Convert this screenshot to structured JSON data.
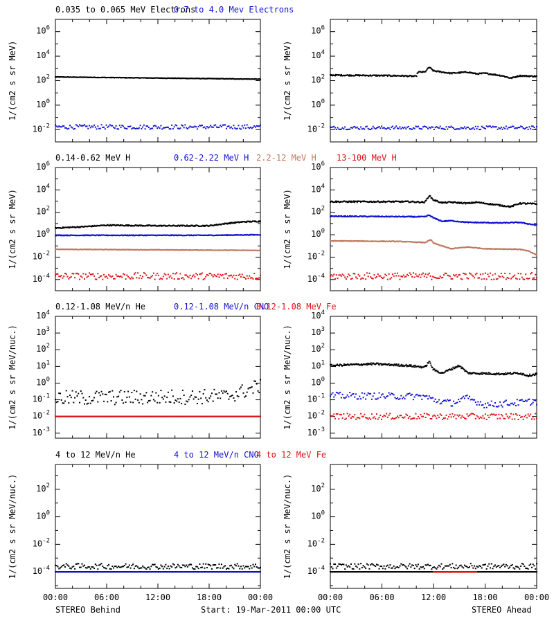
{
  "colors": {
    "black": "#000000",
    "blue": "#1010d0",
    "tan": "#c07860",
    "red": "#dd1010"
  },
  "footer": {
    "left": "STEREO Behind",
    "center": "Start: 19-Mar-2011 00:00 UTC",
    "right": "STEREO Ahead"
  },
  "x_ticks": [
    "00:00",
    "06:00",
    "12:00",
    "18:00",
    "00:00"
  ],
  "chart_data": [
    {
      "type": "scatter",
      "row": 0,
      "side": "behind",
      "legend": [
        {
          "text": "0.035 to 0.065 MeV Electrons",
          "color": "black"
        },
        {
          "text": "0.7 to 4.0 Mev Electrons",
          "color": "blue"
        }
      ],
      "ylabel": "1/(cm2 s sr MeV)",
      "y_log_range": [
        -3,
        7
      ],
      "y_ticks": [
        -2,
        0,
        2,
        4,
        6
      ],
      "x_range_hours": [
        0,
        24
      ],
      "series": [
        {
          "color": "black",
          "style": "line",
          "points": [
            [
              0,
              2.3
            ],
            [
              24,
              2.12
            ]
          ],
          "jitter": 0.02
        },
        {
          "color": "blue",
          "style": "scatter",
          "points": [
            [
              0,
              -1.78
            ],
            [
              24,
              -1.78
            ]
          ],
          "jitter": 0.18
        }
      ]
    },
    {
      "type": "scatter",
      "row": 0,
      "side": "ahead",
      "legend": [],
      "ylabel": "1/(cm2 s sr MeV)",
      "y_log_range": [
        -3,
        7
      ],
      "y_ticks": [
        -2,
        0,
        2,
        4,
        6
      ],
      "x_range_hours": [
        0,
        24
      ],
      "series": [
        {
          "color": "black",
          "style": "line",
          "points": [
            [
              0,
              2.45
            ],
            [
              8,
              2.4
            ],
            [
              10,
              2.35
            ],
            [
              10.2,
              2.7
            ],
            [
              11,
              2.7
            ],
            [
              11.5,
              3.1
            ],
            [
              12,
              2.8
            ],
            [
              14,
              2.6
            ],
            [
              16,
              2.7
            ],
            [
              17,
              2.55
            ],
            [
              18,
              2.6
            ],
            [
              20,
              2.4
            ],
            [
              21,
              2.2
            ],
            [
              22,
              2.4
            ],
            [
              24,
              2.35
            ]
          ],
          "jitter": 0.05
        },
        {
          "color": "blue",
          "style": "scatter",
          "points": [
            [
              0,
              -1.85
            ],
            [
              24,
              -1.85
            ]
          ],
          "jitter": 0.14
        }
      ]
    },
    {
      "type": "scatter",
      "row": 1,
      "side": "behind",
      "legend": [
        {
          "text": "0.14-0.62 MeV H",
          "color": "black"
        },
        {
          "text": "0.62-2.22 MeV H",
          "color": "blue"
        },
        {
          "text": "2.2-12 MeV H",
          "color": "tan"
        },
        {
          "text": "13-100 MeV H",
          "color": "red"
        }
      ],
      "ylabel": "1/(cm2 s sr MeV)",
      "y_log_range": [
        -5,
        6
      ],
      "y_ticks": [
        -4,
        -2,
        0,
        2,
        4,
        6
      ],
      "x_range_hours": [
        0,
        24
      ],
      "series": [
        {
          "color": "black",
          "style": "line",
          "points": [
            [
              0,
              0.6
            ],
            [
              3,
              0.7
            ],
            [
              6,
              0.85
            ],
            [
              12,
              0.8
            ],
            [
              18,
              0.8
            ],
            [
              20,
              1.0
            ],
            [
              22,
              1.15
            ],
            [
              24,
              1.2
            ]
          ],
          "jitter": 0.05
        },
        {
          "color": "blue",
          "style": "line",
          "points": [
            [
              0,
              -0.05
            ],
            [
              18,
              -0.05
            ],
            [
              24,
              0.0
            ]
          ],
          "jitter": 0.03
        },
        {
          "color": "tan",
          "style": "line",
          "points": [
            [
              0,
              -1.3
            ],
            [
              24,
              -1.4
            ]
          ],
          "jitter": 0.02
        },
        {
          "color": "red",
          "style": "scatter",
          "points": [
            [
              0,
              -3.7
            ],
            [
              24,
              -3.7
            ]
          ],
          "jitter": 0.3
        }
      ]
    },
    {
      "type": "scatter",
      "row": 1,
      "side": "ahead",
      "legend": [],
      "ylabel": "1/(cm2 s sr MeV)",
      "y_log_range": [
        -5,
        6
      ],
      "y_ticks": [
        -4,
        -2,
        0,
        2,
        4,
        6
      ],
      "x_range_hours": [
        0,
        24
      ],
      "series": [
        {
          "color": "black",
          "style": "line",
          "points": [
            [
              0,
              2.95
            ],
            [
              9,
              2.95
            ],
            [
              11,
              2.9
            ],
            [
              11.5,
              3.5
            ],
            [
              12,
              3.1
            ],
            [
              13,
              2.85
            ],
            [
              14,
              2.9
            ],
            [
              16,
              2.8
            ],
            [
              17,
              2.9
            ],
            [
              20,
              2.6
            ],
            [
              21,
              2.5
            ],
            [
              22,
              2.8
            ],
            [
              24,
              2.75
            ]
          ],
          "jitter": 0.06
        },
        {
          "color": "blue",
          "style": "line",
          "points": [
            [
              0,
              1.65
            ],
            [
              11,
              1.6
            ],
            [
              11.5,
              1.75
            ],
            [
              12,
              1.5
            ],
            [
              13,
              1.2
            ],
            [
              14,
              1.25
            ],
            [
              16,
              1.1
            ],
            [
              20,
              1.05
            ],
            [
              22,
              1.1
            ],
            [
              24,
              0.85
            ]
          ],
          "jitter": 0.04
        },
        {
          "color": "tan",
          "style": "line",
          "points": [
            [
              0,
              -0.55
            ],
            [
              8,
              -0.6
            ],
            [
              11,
              -0.7
            ],
            [
              11.7,
              -0.45
            ],
            [
              12,
              -0.75
            ],
            [
              13,
              -1.0
            ],
            [
              14,
              -1.25
            ],
            [
              16,
              -1.1
            ],
            [
              18,
              -1.25
            ],
            [
              22,
              -1.3
            ],
            [
              23,
              -1.45
            ],
            [
              24,
              -1.8
            ]
          ],
          "jitter": 0.03
        },
        {
          "color": "red",
          "style": "scatter",
          "points": [
            [
              0,
              -3.7
            ],
            [
              24,
              -3.7
            ]
          ],
          "jitter": 0.3
        }
      ]
    },
    {
      "type": "scatter",
      "row": 2,
      "side": "behind",
      "legend": [
        {
          "text": "0.12-1.08 MeV/n He",
          "color": "black"
        },
        {
          "text": "0.12-1.08 MeV/n CNO",
          "color": "blue"
        },
        {
          "text": "0.12-1.08 MeV Fe",
          "color": "red"
        }
      ],
      "ylabel": "1/(cm2 s sr MeV/nuc.)",
      "y_log_range": [
        -3.3,
        4
      ],
      "y_ticks": [
        -3,
        -2,
        -1,
        0,
        1,
        2,
        3,
        4
      ],
      "x_range_hours": [
        0,
        24
      ],
      "series": [
        {
          "color": "black",
          "style": "scatter",
          "points": [
            [
              0,
              -0.9
            ],
            [
              20,
              -0.8
            ],
            [
              22,
              -0.5
            ],
            [
              24,
              -0.15
            ]
          ],
          "jitter": 0.45
        },
        {
          "color": "blue",
          "style": "scatter",
          "points": [
            [
              0,
              -2.0
            ],
            [
              24,
              -2.0
            ]
          ],
          "jitter": 0.0
        },
        {
          "color": "red",
          "style": "scatter",
          "points": [
            [
              0,
              -2.0
            ],
            [
              24,
              -2.0
            ]
          ],
          "jitter": 0.0
        }
      ]
    },
    {
      "type": "scatter",
      "row": 2,
      "side": "ahead",
      "legend": [],
      "ylabel": "1/(cm2 s sr MeV/nuc.)",
      "y_log_range": [
        -3.3,
        4
      ],
      "y_ticks": [
        -3,
        -2,
        -1,
        0,
        1,
        2,
        3,
        4
      ],
      "x_range_hours": [
        0,
        24
      ],
      "series": [
        {
          "color": "black",
          "style": "line",
          "points": [
            [
              0,
              1.05
            ],
            [
              5,
              1.15
            ],
            [
              9,
              1.05
            ],
            [
              11,
              0.95
            ],
            [
              11.5,
              1.3
            ],
            [
              12,
              0.8
            ],
            [
              13,
              0.6
            ],
            [
              15,
              1.05
            ],
            [
              16,
              0.6
            ],
            [
              20,
              0.55
            ],
            [
              22,
              0.6
            ],
            [
              23,
              0.45
            ],
            [
              24,
              0.55
            ]
          ],
          "jitter": 0.06
        },
        {
          "color": "blue",
          "style": "scatter",
          "points": [
            [
              0,
              -0.75
            ],
            [
              11,
              -0.8
            ],
            [
              12,
              -1.0
            ],
            [
              14,
              -1.2
            ],
            [
              16,
              -0.9
            ],
            [
              18,
              -1.3
            ],
            [
              24,
              -1.1
            ]
          ],
          "jitter": 0.2
        },
        {
          "color": "red",
          "style": "scatter",
          "points": [
            [
              0,
              -2.0
            ],
            [
              24,
              -2.0
            ]
          ],
          "jitter": 0.18
        }
      ]
    },
    {
      "type": "scatter",
      "row": 3,
      "side": "behind",
      "legend": [
        {
          "text": "4 to 12 MeV/n He",
          "color": "black"
        },
        {
          "text": "4 to 12 MeV/n CNO",
          "color": "blue"
        },
        {
          "text": "4 to 12 MeV Fe",
          "color": "red"
        }
      ],
      "ylabel": "1/(cm2 s sr MeV/nuc.)",
      "y_log_range": [
        -5.2,
        3.8
      ],
      "y_ticks": [
        -4,
        -2,
        0,
        2
      ],
      "x_range_hours": [
        0,
        24
      ],
      "series": [
        {
          "color": "black",
          "style": "scatter",
          "points": [
            [
              0,
              -3.6
            ],
            [
              24,
              -3.6
            ]
          ],
          "jitter": 0.2
        },
        {
          "color": "black",
          "style": "line",
          "points": [
            [
              0,
              -4.0
            ],
            [
              24,
              -4.0
            ]
          ],
          "jitter": 0.0
        },
        {
          "color": "blue",
          "style": "scatter",
          "points": [
            [
              0,
              -4.0
            ],
            [
              24,
              -4.0
            ]
          ],
          "jitter": 0.0
        }
      ]
    },
    {
      "type": "scatter",
      "row": 3,
      "side": "ahead",
      "legend": [],
      "ylabel": "1/(cm2 s sr MeV/nuc.)",
      "y_log_range": [
        -5.2,
        3.8
      ],
      "y_ticks": [
        -4,
        -2,
        0,
        2
      ],
      "x_range_hours": [
        0,
        24
      ],
      "series": [
        {
          "color": "black",
          "style": "scatter",
          "points": [
            [
              0,
              -3.6
            ],
            [
              24,
              -3.6
            ]
          ],
          "jitter": 0.2
        },
        {
          "color": "black",
          "style": "line",
          "points": [
            [
              0,
              -4.0
            ],
            [
              24,
              -4.0
            ]
          ],
          "jitter": 0.0
        },
        {
          "color": "red",
          "style": "scatter",
          "points": [
            [
              12,
              -4.0
            ],
            [
              17,
              -4.0
            ]
          ],
          "jitter": 0.0
        }
      ]
    }
  ]
}
